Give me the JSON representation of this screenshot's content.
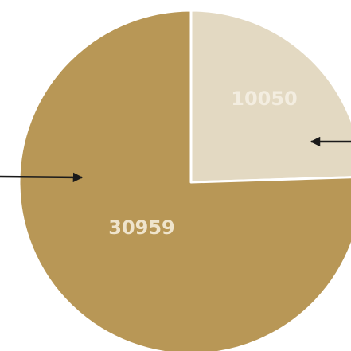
{
  "chart_data": {
    "type": "pie",
    "title": "",
    "series": [
      {
        "values": [
          10050,
          30959
        ],
        "labels": [
          "10050",
          "30959"
        ],
        "colors": [
          "#e3d9c2",
          "#b89756"
        ],
        "label_colors": [
          "#f3ede0",
          "#efe4cc"
        ]
      }
    ],
    "start_angle_deg": 0,
    "direction": "clockwise",
    "stroke_color": "#ffffff",
    "arrow_color": "#1a1a1a"
  }
}
